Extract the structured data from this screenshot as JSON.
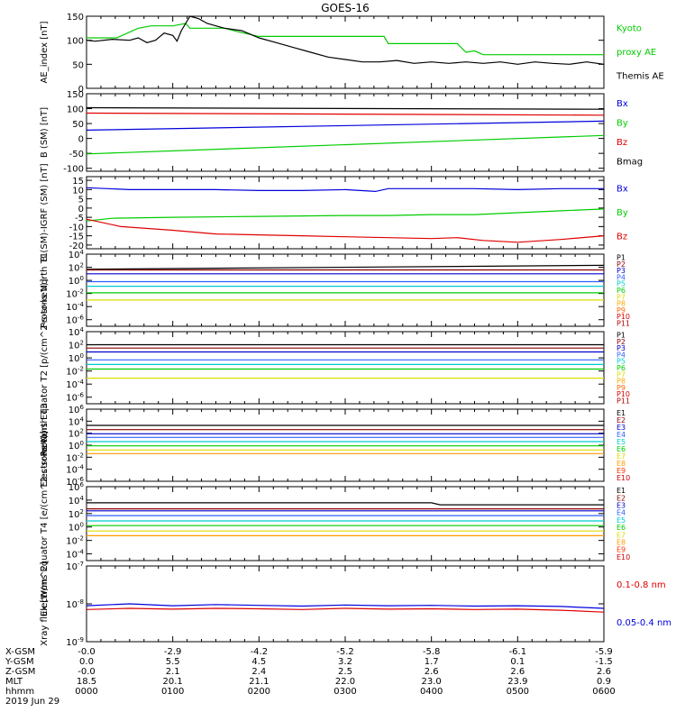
{
  "title": "GOES-16",
  "colors": {
    "black": "#000000",
    "red": "#e00000",
    "green": "#00cc00",
    "blue": "#0000dd"
  },
  "chart_data": [
    {
      "type": "line",
      "ylabel": "AE_index [nT]",
      "ylim": [
        0,
        150
      ],
      "yticks": [
        "150",
        "100",
        "50",
        "0"
      ],
      "series": [
        {
          "name": "Kyoto proxy AE",
          "color": "#00cc00",
          "x": [
            0,
            0.35,
            0.6,
            0.75,
            1.0,
            1.15,
            1.2,
            1.4,
            1.6,
            1.75,
            2.0,
            2.5,
            3.0,
            3.45,
            3.5,
            3.6,
            4.0,
            4.3,
            4.4,
            4.5,
            4.6,
            4.9,
            5.2,
            5.6,
            6.0
          ],
          "y": [
            105,
            105,
            125,
            130,
            130,
            135,
            125,
            125,
            125,
            118,
            108,
            108,
            108,
            108,
            93,
            93,
            93,
            93,
            75,
            78,
            70,
            70,
            70,
            70,
            70
          ]
        },
        {
          "name": "Themis AE",
          "color": "#000000",
          "x": [
            0,
            0.1,
            0.3,
            0.5,
            0.6,
            0.7,
            0.8,
            0.9,
            1.0,
            1.05,
            1.1,
            1.2,
            1.3,
            1.4,
            1.5,
            1.6,
            1.8,
            2.0,
            2.2,
            2.4,
            2.6,
            2.8,
            3.0,
            3.2,
            3.4,
            3.6,
            3.8,
            4.0,
            4.2,
            4.4,
            4.6,
            4.8,
            5.0,
            5.2,
            5.4,
            5.6,
            5.8,
            6.0
          ],
          "y": [
            100,
            98,
            102,
            100,
            105,
            95,
            100,
            115,
            110,
            98,
            120,
            150,
            145,
            135,
            130,
            125,
            120,
            105,
            95,
            85,
            75,
            65,
            60,
            55,
            55,
            58,
            52,
            55,
            52,
            55,
            52,
            55,
            50,
            55,
            52,
            50,
            55,
            50
          ]
        }
      ],
      "legend": [
        {
          "text": "Kyoto",
          "color": "#00cc00"
        },
        {
          "text": "proxy AE",
          "color": "#00cc00"
        },
        {
          "text": "Themis AE",
          "color": "#000000"
        }
      ]
    },
    {
      "type": "line",
      "ylabel": "B (SM) [nT]",
      "ylim": [
        -110,
        150
      ],
      "yticks": [
        "150",
        "100",
        "50",
        "0",
        "-50",
        "-100"
      ],
      "series": [
        {
          "name": "Bx",
          "color": "#0000dd",
          "x": [
            0,
            6
          ],
          "y": [
            28,
            58
          ]
        },
        {
          "name": "By",
          "color": "#00cc00",
          "x": [
            0,
            6
          ],
          "y": [
            -52,
            10
          ]
        },
        {
          "name": "Bz",
          "color": "#e00000",
          "x": [
            0,
            6
          ],
          "y": [
            85,
            78
          ]
        },
        {
          "name": "Bmag",
          "color": "#000000",
          "x": [
            0,
            6
          ],
          "y": [
            103,
            98
          ]
        }
      ],
      "legend": [
        {
          "text": "Bx",
          "color": "#0000dd"
        },
        {
          "text": "By",
          "color": "#00cc00"
        },
        {
          "text": "Bz",
          "color": "#e00000"
        },
        {
          "text": "Bmag",
          "color": "#000000"
        }
      ]
    },
    {
      "type": "line",
      "ylabel": "B (SM)-IGRF (SM) [nT]",
      "ylim": [
        -22,
        17
      ],
      "yticks": [
        "15",
        "10",
        "5",
        "0",
        "-5",
        "-10",
        "-15",
        "-20"
      ],
      "series": [
        {
          "name": "Bx",
          "color": "#0000dd",
          "x": [
            0,
            0.5,
            1.0,
            1.5,
            2.0,
            2.5,
            3.0,
            3.35,
            3.5,
            4.0,
            4.5,
            5.0,
            5.5,
            6.0
          ],
          "y": [
            11,
            10,
            10,
            10,
            9.5,
            9.5,
            10,
            9,
            10.5,
            10.5,
            10.5,
            10,
            10.5,
            10.5
          ]
        },
        {
          "name": "By",
          "color": "#00cc00",
          "x": [
            0,
            0.3,
            1.0,
            2.0,
            3.0,
            3.5,
            4.0,
            4.5,
            5.0,
            5.5,
            6.0
          ],
          "y": [
            -7,
            -5.5,
            -5,
            -4.5,
            -4,
            -4,
            -3.5,
            -3.5,
            -2.5,
            -1.5,
            -0.5
          ]
        },
        {
          "name": "Bz",
          "color": "#e00000",
          "x": [
            0,
            0.4,
            1.0,
            1.5,
            2.0,
            2.5,
            3.0,
            3.5,
            4.0,
            4.3,
            4.6,
            5.0,
            5.5,
            6.0
          ],
          "y": [
            -6,
            -10,
            -12,
            -14,
            -14.5,
            -15,
            -15.5,
            -16,
            -16.5,
            -16,
            -17.5,
            -18.5,
            -17,
            -15
          ]
        }
      ],
      "legend": [
        {
          "text": "Bx",
          "color": "#0000dd"
        },
        {
          "text": "By",
          "color": "#00cc00"
        },
        {
          "text": "Bz",
          "color": "#e00000"
        }
      ]
    },
    {
      "type": "line",
      "ylog": true,
      "ylabel": "Protons North T1",
      "ylim": [
        -7,
        4
      ],
      "yticks": [
        "10^4",
        "10^2",
        "10^0",
        "10^-2",
        "10^-4",
        "10^-6"
      ],
      "series": [
        {
          "name": "P1",
          "color": "#000000",
          "x": [
            0,
            6
          ],
          "y": [
            1.7,
            2.3
          ]
        },
        {
          "name": "P2",
          "color": "#8b0000",
          "x": [
            0,
            6
          ],
          "y": [
            1.6,
            1.6
          ]
        },
        {
          "name": "P3",
          "color": "#0000cc",
          "x": [
            0,
            6
          ],
          "y": [
            1.0,
            1.0
          ]
        },
        {
          "name": "P4",
          "color": "#3060ff",
          "x": [
            0,
            6
          ],
          "y": [
            -0.2,
            -0.2
          ]
        },
        {
          "name": "P5",
          "color": "#00cccc",
          "x": [
            0,
            6
          ],
          "y": [
            -0.9,
            -0.9
          ]
        },
        {
          "name": "P6",
          "color": "#00cc00",
          "x": [
            0,
            6
          ],
          "y": [
            -1.9,
            -1.9
          ]
        },
        {
          "name": "P7",
          "color": "#dddd00",
          "x": [
            0,
            6
          ],
          "y": [
            -3.0,
            -3.0
          ]
        }
      ],
      "legend": [
        {
          "text": "P1",
          "color": "#000000"
        },
        {
          "text": "P2",
          "color": "#8b0000"
        },
        {
          "text": "P3",
          "color": "#0000cc"
        },
        {
          "text": "P4",
          "color": "#3060ff"
        },
        {
          "text": "P5",
          "color": "#00cccc"
        },
        {
          "text": "P6",
          "color": "#00cc00"
        },
        {
          "text": "P7",
          "color": "#dddd00"
        },
        {
          "text": "P8",
          "color": "#ffaa00"
        },
        {
          "text": "P9",
          "color": "#ff6600"
        },
        {
          "text": "P10",
          "color": "#dd0000"
        },
        {
          "text": "P11",
          "color": "#aa0000"
        }
      ]
    },
    {
      "type": "line",
      "ylog": true,
      "ylabel": "Protons Equator T2 [p/(cm^2-s-sr-keV)]",
      "ylim": [
        -7,
        4
      ],
      "yticks": [
        "10^4",
        "10^2",
        "10^0",
        "10^-2",
        "10^-4",
        "10^-6"
      ],
      "series": [
        {
          "name": "P1",
          "color": "#000000",
          "x": [
            0,
            6
          ],
          "y": [
            2.0,
            2.0
          ]
        },
        {
          "name": "P2",
          "color": "#8b0000",
          "x": [
            0,
            6
          ],
          "y": [
            1.5,
            1.5
          ]
        },
        {
          "name": "P3",
          "color": "#0000cc",
          "x": [
            0,
            6
          ],
          "y": [
            0.9,
            0.9
          ]
        },
        {
          "name": "P4",
          "color": "#3060ff",
          "x": [
            0,
            6
          ],
          "y": [
            -0.3,
            -0.3
          ]
        },
        {
          "name": "P5",
          "color": "#00cccc",
          "x": [
            0,
            6
          ],
          "y": [
            -1.0,
            -1.0
          ]
        },
        {
          "name": "P6",
          "color": "#00cc00",
          "x": [
            0,
            6
          ],
          "y": [
            -1.7,
            -1.7
          ]
        },
        {
          "name": "P7",
          "color": "#dddd00",
          "x": [
            0,
            6
          ],
          "y": [
            -3.1,
            -3.1
          ]
        }
      ],
      "legend": [
        {
          "text": "P1",
          "color": "#000000"
        },
        {
          "text": "P2",
          "color": "#8b0000"
        },
        {
          "text": "P3",
          "color": "#0000cc"
        },
        {
          "text": "P4",
          "color": "#3060ff"
        },
        {
          "text": "P5",
          "color": "#00cccc"
        },
        {
          "text": "P6",
          "color": "#00cc00"
        },
        {
          "text": "P7",
          "color": "#dddd00"
        },
        {
          "text": "P8",
          "color": "#ffaa00"
        },
        {
          "text": "P9",
          "color": "#ff6600"
        },
        {
          "text": "P10",
          "color": "#dd0000"
        },
        {
          "text": "P11",
          "color": "#aa0000"
        }
      ]
    },
    {
      "type": "line",
      "ylog": true,
      "ylabel": "Electrons North T3",
      "ylim": [
        -6,
        6
      ],
      "yticks": [
        "10^6",
        "10^4",
        "10^2",
        "10^0",
        "10^-2",
        "10^-4",
        "10^-6"
      ],
      "series": [
        {
          "name": "E1",
          "color": "#000000",
          "x": [
            0,
            6
          ],
          "y": [
            3.3,
            3.3
          ]
        },
        {
          "name": "E2",
          "color": "#8b0000",
          "x": [
            0,
            6
          ],
          "y": [
            2.6,
            2.6
          ]
        },
        {
          "name": "E3",
          "color": "#0000cc",
          "x": [
            0,
            6
          ],
          "y": [
            1.9,
            1.9
          ]
        },
        {
          "name": "E4",
          "color": "#3060ff",
          "x": [
            0,
            6
          ],
          "y": [
            1.3,
            1.3
          ]
        },
        {
          "name": "E5",
          "color": "#00cccc",
          "x": [
            0,
            6
          ],
          "y": [
            0.6,
            0.6
          ]
        },
        {
          "name": "E6",
          "color": "#00cc00",
          "x": [
            0,
            6
          ],
          "y": [
            -0.1,
            -0.1
          ]
        },
        {
          "name": "E7",
          "color": "#dddd00",
          "x": [
            0,
            6
          ],
          "y": [
            -0.8,
            -0.8
          ]
        },
        {
          "name": "E8",
          "color": "#ff9900",
          "x": [
            0,
            6
          ],
          "y": [
            -1.4,
            -1.4
          ]
        }
      ],
      "legend": [
        {
          "text": "E1",
          "color": "#000000"
        },
        {
          "text": "E2",
          "color": "#8b0000"
        },
        {
          "text": "E3",
          "color": "#0000cc"
        },
        {
          "text": "E4",
          "color": "#3060ff"
        },
        {
          "text": "E5",
          "color": "#00cccc"
        },
        {
          "text": "E6",
          "color": "#00cc00"
        },
        {
          "text": "E7",
          "color": "#dddd00"
        },
        {
          "text": "E8",
          "color": "#ff9900"
        },
        {
          "text": "E9",
          "color": "#ff3300"
        },
        {
          "text": "E10",
          "color": "#cc0000"
        }
      ]
    },
    {
      "type": "line",
      "ylog": true,
      "ylabel": "Electrons Equator T4 [e/(cm^2-s-sr-keV)]",
      "ylim": [
        -5,
        6
      ],
      "yticks": [
        "10^6",
        "10^4",
        "10^2",
        "10^0",
        "10^-2",
        "10^-4"
      ],
      "series": [
        {
          "name": "E1",
          "color": "#000000",
          "x": [
            0,
            4.0,
            4.1,
            6
          ],
          "y": [
            3.6,
            3.6,
            3.3,
            3.3
          ]
        },
        {
          "name": "E2",
          "color": "#8b0000",
          "x": [
            0,
            6
          ],
          "y": [
            2.7,
            2.7
          ]
        },
        {
          "name": "E3",
          "color": "#0000cc",
          "x": [
            0,
            6
          ],
          "y": [
            2.4,
            2.4
          ]
        },
        {
          "name": "E4",
          "color": "#3060ff",
          "x": [
            0,
            6
          ],
          "y": [
            1.7,
            1.7
          ]
        },
        {
          "name": "E5",
          "color": "#00cccc",
          "x": [
            0,
            6
          ],
          "y": [
            0.9,
            0.9
          ]
        },
        {
          "name": "E6",
          "color": "#00cc00",
          "x": [
            0,
            6
          ],
          "y": [
            0.2,
            0.2
          ]
        },
        {
          "name": "E7",
          "color": "#dddd00",
          "x": [
            0,
            6
          ],
          "y": [
            -0.6,
            -0.6
          ]
        },
        {
          "name": "E8",
          "color": "#ff9900",
          "x": [
            0,
            6
          ],
          "y": [
            -1.3,
            -1.3
          ]
        }
      ],
      "legend": [
        {
          "text": "E1",
          "color": "#000000"
        },
        {
          "text": "E2",
          "color": "#8b0000"
        },
        {
          "text": "E3",
          "color": "#0000cc"
        },
        {
          "text": "E4",
          "color": "#3060ff"
        },
        {
          "text": "E5",
          "color": "#00cccc"
        },
        {
          "text": "E6",
          "color": "#00cc00"
        },
        {
          "text": "E7",
          "color": "#dddd00"
        },
        {
          "text": "E8",
          "color": "#ff9900"
        },
        {
          "text": "E9",
          "color": "#ff3300"
        },
        {
          "text": "E10",
          "color": "#cc0000"
        }
      ]
    },
    {
      "type": "line",
      "ylog": true,
      "ylabel": "Xray flux [W/m^2]",
      "ylim": [
        -9,
        -7
      ],
      "yticks": [
        "10^-7",
        "10^-8",
        "10^-9"
      ],
      "series": [
        {
          "name": "0.05-0.4 nm",
          "color": "#0000dd",
          "x": [
            0,
            0.5,
            1.0,
            1.5,
            2.0,
            2.5,
            3.0,
            3.5,
            4.0,
            4.5,
            5.0,
            5.5,
            6.0
          ],
          "y": [
            -8.05,
            -8.0,
            -8.05,
            -8.02,
            -8.04,
            -8.06,
            -8.03,
            -8.05,
            -8.04,
            -8.06,
            -8.05,
            -8.07,
            -8.12
          ]
        },
        {
          "name": "0.1-0.8 nm",
          "color": "#e00000",
          "x": [
            0,
            0.5,
            1.0,
            1.5,
            2.0,
            2.5,
            3.0,
            3.5,
            4.0,
            4.5,
            5.0,
            5.5,
            6.0
          ],
          "y": [
            -8.15,
            -8.12,
            -8.14,
            -8.12,
            -8.13,
            -8.15,
            -8.12,
            -8.14,
            -8.13,
            -8.15,
            -8.14,
            -8.17,
            -8.22
          ]
        }
      ],
      "legend": [
        {
          "text": "0.1-0.8 nm",
          "color": "#e00000"
        },
        {
          "text": "0.05-0.4 nm",
          "color": "#0000dd"
        }
      ]
    }
  ],
  "x_axis": {
    "row_labels": [
      "X-GSM",
      "Y-GSM",
      "Z-GSM",
      "MLT",
      "hhmm",
      "2019 Jun 29"
    ],
    "columns": [
      {
        "x": 0,
        "vals": [
          "-0.0",
          "0.0",
          "-0.0",
          "18.5",
          "0000"
        ]
      },
      {
        "x": 1,
        "vals": [
          "-2.9",
          "5.5",
          "2.1",
          "20.1",
          "0100"
        ]
      },
      {
        "x": 2,
        "vals": [
          "-4.2",
          "4.5",
          "2.4",
          "21.1",
          "0200"
        ]
      },
      {
        "x": 3,
        "vals": [
          "-5.2",
          "3.2",
          "2.5",
          "22.0",
          "0300"
        ]
      },
      {
        "x": 4,
        "vals": [
          "-5.8",
          "1.7",
          "2.6",
          "23.0",
          "0400"
        ]
      },
      {
        "x": 5,
        "vals": [
          "-6.1",
          "0.1",
          "2.6",
          "23.9",
          "0500"
        ]
      },
      {
        "x": 6,
        "vals": [
          "-5.9",
          "-1.5",
          "2.6",
          "0.9",
          "0600"
        ]
      }
    ]
  }
}
